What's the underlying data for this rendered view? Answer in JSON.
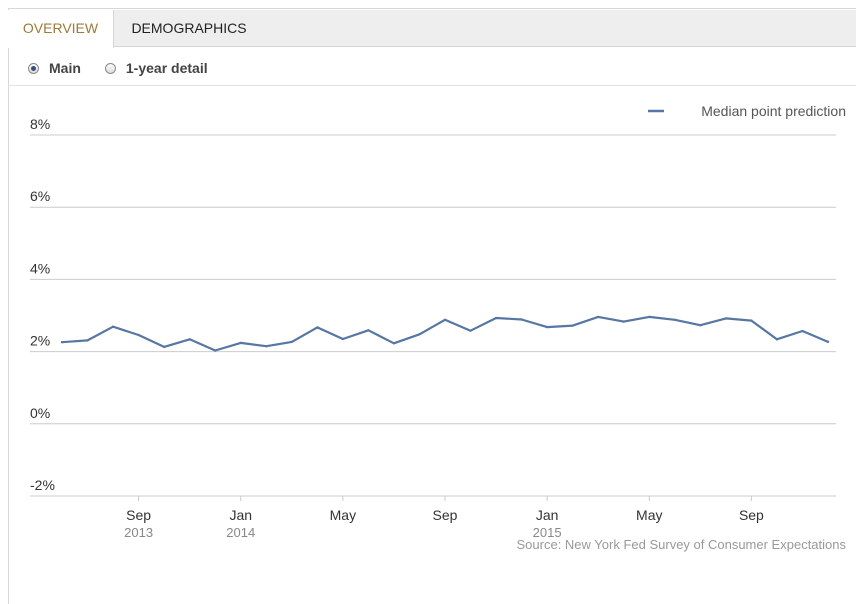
{
  "tabs": [
    {
      "label": "OVERVIEW",
      "active": true
    },
    {
      "label": "DEMOGRAPHICS",
      "active": false
    }
  ],
  "radio_options": [
    {
      "label": "Main",
      "checked": true
    },
    {
      "label": "1-year detail",
      "checked": false
    }
  ],
  "source_text": "Source: New York Fed Survey of Consumer Expectations",
  "colors": {
    "series": "#5677a3",
    "active_tab_text": "#9c7a3a",
    "grid": "#cccccc"
  },
  "chart_data": {
    "type": "line",
    "title": "",
    "xlabel": "",
    "ylabel": "",
    "ylim": [
      -2,
      8
    ],
    "y_ticks": [
      -2,
      0,
      2,
      4,
      6,
      8
    ],
    "y_tick_labels": [
      "-2%",
      "0%",
      "2%",
      "4%",
      "6%",
      "8%"
    ],
    "grid": true,
    "legend_position": "top-right",
    "x_start": "2013-06",
    "x_end": "2015-12",
    "x_ticks": [
      {
        "date": "2013-09",
        "label": "Sep",
        "sublabel": "2013"
      },
      {
        "date": "2014-01",
        "label": "Jan",
        "sublabel": "2014"
      },
      {
        "date": "2014-05",
        "label": "May",
        "sublabel": ""
      },
      {
        "date": "2014-09",
        "label": "Sep",
        "sublabel": ""
      },
      {
        "date": "2015-01",
        "label": "Jan",
        "sublabel": "2015"
      },
      {
        "date": "2015-05",
        "label": "May",
        "sublabel": ""
      },
      {
        "date": "2015-09",
        "label": "Sep",
        "sublabel": ""
      }
    ],
    "series": [
      {
        "name": "Median point prediction",
        "x": [
          "2013-06",
          "2013-07",
          "2013-08",
          "2013-09",
          "2013-10",
          "2013-11",
          "2013-12",
          "2014-01",
          "2014-02",
          "2014-03",
          "2014-04",
          "2014-05",
          "2014-06",
          "2014-07",
          "2014-08",
          "2014-09",
          "2014-10",
          "2014-11",
          "2014-12",
          "2015-01",
          "2015-02",
          "2015-03",
          "2015-04",
          "2015-05",
          "2015-06",
          "2015-07",
          "2015-08",
          "2015-09",
          "2015-10",
          "2015-11",
          "2015-12"
        ],
        "values": [
          2.26,
          2.31,
          2.69,
          2.46,
          2.13,
          2.34,
          2.03,
          2.24,
          2.15,
          2.27,
          2.67,
          2.35,
          2.59,
          2.23,
          2.48,
          2.88,
          2.58,
          2.93,
          2.89,
          2.68,
          2.72,
          2.96,
          2.83,
          2.96,
          2.88,
          2.73,
          2.92,
          2.86,
          2.34,
          2.57,
          2.27
        ]
      }
    ]
  }
}
